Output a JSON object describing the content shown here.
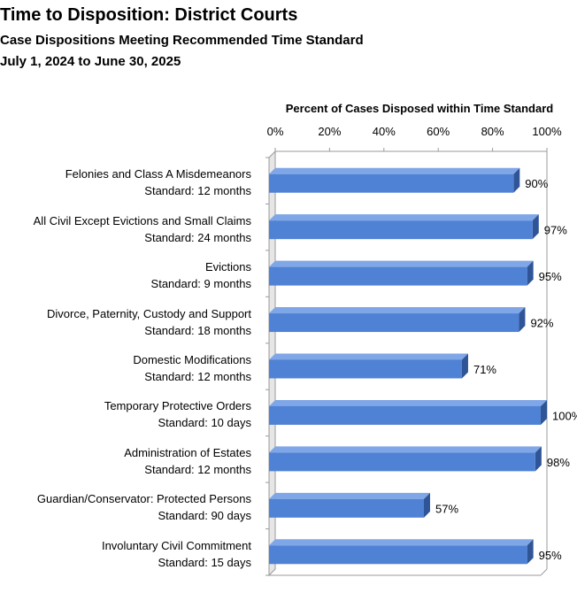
{
  "title": "Time to Disposition: District Courts",
  "subtitle": "Case Dispositions Meeting Recommended Time Standard",
  "period": "July 1, 2024 to June 30, 2025",
  "chart_data": {
    "type": "bar",
    "orientation": "horizontal",
    "title": "Time to Disposition: District Courts",
    "xlabel": "Percent of Cases Disposed within Time Standard",
    "xlim": [
      0,
      100
    ],
    "x_ticks": [
      "0%",
      "20%",
      "40%",
      "60%",
      "80%",
      "100%"
    ],
    "tick_values": [
      0,
      20,
      40,
      60,
      80,
      100
    ],
    "categories": [
      {
        "name": "Felonies and Class A Misdemeanors",
        "standard": "Standard: 12 months"
      },
      {
        "name": "All Civil Except Evictions and Small Claims",
        "standard": "Standard: 24 months"
      },
      {
        "name": "Evictions",
        "standard": "Standard: 9 months"
      },
      {
        "name": "Divorce, Paternity, Custody and Support",
        "standard": "Standard: 18 months"
      },
      {
        "name": "Domestic Modifications",
        "standard": "Standard: 12 months"
      },
      {
        "name": "Temporary Protective Orders",
        "standard": "Standard: 10 days"
      },
      {
        "name": "Administration of Estates",
        "standard": "Standard: 12 months"
      },
      {
        "name": "Guardian/Conservator: Protected Persons",
        "standard": "Standard: 90 days"
      },
      {
        "name": "Involuntary Civil Commitment",
        "standard": "Standard: 15 days"
      }
    ],
    "values": [
      90,
      97,
      95,
      92,
      71,
      100,
      98,
      57,
      95
    ],
    "value_labels": [
      "90%",
      "97%",
      "95%",
      "92%",
      "71%",
      "100%",
      "98%",
      "57%",
      "95%"
    ],
    "bar_color": "#4f81d4",
    "bar_top_color": "#7fa6e6",
    "bar_side_color": "#2f5597",
    "grid": false,
    "legend": "none"
  }
}
